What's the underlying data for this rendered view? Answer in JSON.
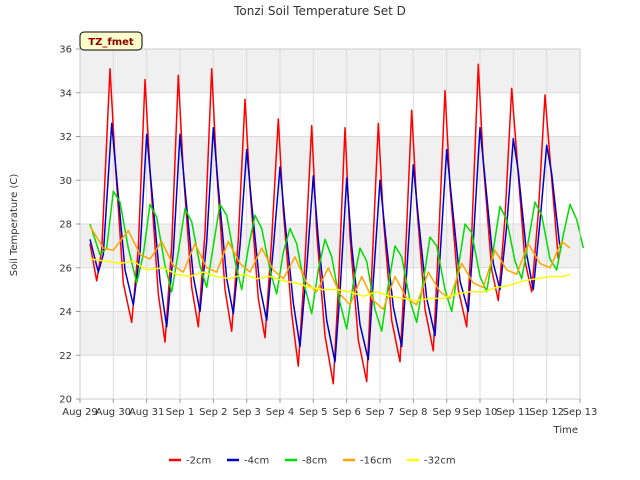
{
  "chart_data": {
    "type": "line",
    "title": "Tonzi Soil Temperature Set D",
    "xlabel": "Time",
    "ylabel": "Soil Temperature (C)",
    "badge": "TZ_fmet",
    "ylim": [
      20,
      36
    ],
    "yticks": [
      20,
      22,
      24,
      26,
      28,
      30,
      32,
      34,
      36
    ],
    "xlim": [
      0,
      15
    ],
    "xticks": [
      {
        "x": 0,
        "label": "Aug 29"
      },
      {
        "x": 1,
        "label": "Aug 30"
      },
      {
        "x": 2,
        "label": "Aug 31"
      },
      {
        "x": 3,
        "label": "Sep 1"
      },
      {
        "x": 4,
        "label": "Sep 2"
      },
      {
        "x": 5,
        "label": "Sep 3"
      },
      {
        "x": 6,
        "label": "Sep 4"
      },
      {
        "x": 7,
        "label": "Sep 5"
      },
      {
        "x": 8,
        "label": "Sep 6"
      },
      {
        "x": 9,
        "label": "Sep 7"
      },
      {
        "x": 10,
        "label": "Sep 8"
      },
      {
        "x": 11,
        "label": "Sep 9"
      },
      {
        "x": 12,
        "label": "Sep 10"
      },
      {
        "x": 13,
        "label": "Sep 11"
      },
      {
        "x": 14,
        "label": "Sep 12"
      },
      {
        "x": 15,
        "label": "Sep 13"
      }
    ],
    "grid": true,
    "legend_position": "bottom",
    "series": [
      {
        "name": "-2cm",
        "color": "#ff0000",
        "points": [
          [
            0.3,
            27.1
          ],
          [
            0.5,
            25.4
          ],
          [
            0.65,
            26.8
          ],
          [
            0.9,
            35.1
          ],
          [
            1.05,
            31.0
          ],
          [
            1.3,
            25.3
          ],
          [
            1.55,
            23.5
          ],
          [
            1.75,
            26.9
          ],
          [
            1.95,
            34.6
          ],
          [
            2.1,
            30.4
          ],
          [
            2.35,
            24.8
          ],
          [
            2.55,
            22.6
          ],
          [
            2.75,
            27.0
          ],
          [
            2.95,
            34.8
          ],
          [
            3.1,
            30.4
          ],
          [
            3.35,
            25.1
          ],
          [
            3.55,
            23.3
          ],
          [
            3.75,
            27.6
          ],
          [
            3.95,
            35.1
          ],
          [
            4.1,
            30.4
          ],
          [
            4.35,
            25.0
          ],
          [
            4.55,
            23.1
          ],
          [
            4.75,
            27.3
          ],
          [
            4.95,
            33.7
          ],
          [
            5.1,
            29.6
          ],
          [
            5.35,
            24.6
          ],
          [
            5.55,
            22.8
          ],
          [
            5.75,
            27.3
          ],
          [
            5.95,
            32.8
          ],
          [
            6.1,
            28.6
          ],
          [
            6.35,
            23.9
          ],
          [
            6.55,
            21.5
          ],
          [
            6.75,
            26.3
          ],
          [
            6.95,
            32.5
          ],
          [
            7.1,
            27.6
          ],
          [
            7.35,
            22.9
          ],
          [
            7.6,
            20.7
          ],
          [
            7.75,
            25.0
          ],
          [
            7.95,
            32.4
          ],
          [
            8.1,
            27.4
          ],
          [
            8.35,
            22.7
          ],
          [
            8.6,
            20.8
          ],
          [
            8.75,
            25.7
          ],
          [
            8.95,
            32.6
          ],
          [
            9.1,
            28.3
          ],
          [
            9.35,
            23.6
          ],
          [
            9.6,
            21.7
          ],
          [
            9.75,
            26.1
          ],
          [
            9.95,
            33.2
          ],
          [
            10.1,
            28.9
          ],
          [
            10.35,
            24.1
          ],
          [
            10.6,
            22.2
          ],
          [
            10.75,
            26.9
          ],
          [
            10.95,
            34.1
          ],
          [
            11.1,
            29.7
          ],
          [
            11.35,
            25.0
          ],
          [
            11.6,
            23.3
          ],
          [
            11.75,
            27.5
          ],
          [
            11.95,
            35.3
          ],
          [
            12.1,
            30.8
          ],
          [
            12.35,
            25.9
          ],
          [
            12.55,
            24.5
          ],
          [
            12.75,
            28.3
          ],
          [
            12.95,
            34.2
          ],
          [
            13.1,
            31.2
          ],
          [
            13.35,
            26.3
          ],
          [
            13.55,
            24.9
          ],
          [
            13.75,
            28.5
          ],
          [
            13.95,
            33.9
          ],
          [
            14.1,
            31.0
          ],
          [
            14.35,
            26.4
          ]
        ]
      },
      {
        "name": "-4cm",
        "color": "#0000cc",
        "points": [
          [
            0.3,
            27.3
          ],
          [
            0.55,
            25.8
          ],
          [
            0.7,
            26.6
          ],
          [
            0.95,
            32.6
          ],
          [
            1.1,
            30.1
          ],
          [
            1.35,
            25.9
          ],
          [
            1.6,
            24.3
          ],
          [
            1.8,
            26.7
          ],
          [
            2.0,
            32.1
          ],
          [
            2.15,
            29.6
          ],
          [
            2.4,
            25.4
          ],
          [
            2.6,
            23.3
          ],
          [
            2.8,
            26.7
          ],
          [
            3.0,
            32.1
          ],
          [
            3.15,
            29.6
          ],
          [
            3.4,
            25.6
          ],
          [
            3.6,
            24.0
          ],
          [
            3.8,
            27.2
          ],
          [
            4.0,
            32.4
          ],
          [
            4.15,
            29.7
          ],
          [
            4.4,
            25.5
          ],
          [
            4.6,
            23.9
          ],
          [
            4.8,
            27.0
          ],
          [
            5.0,
            31.4
          ],
          [
            5.15,
            28.9
          ],
          [
            5.4,
            25.1
          ],
          [
            5.6,
            23.6
          ],
          [
            5.8,
            26.9
          ],
          [
            6.0,
            30.6
          ],
          [
            6.15,
            28.1
          ],
          [
            6.4,
            24.4
          ],
          [
            6.6,
            22.4
          ],
          [
            6.8,
            26.0
          ],
          [
            7.0,
            30.2
          ],
          [
            7.15,
            27.3
          ],
          [
            7.4,
            23.6
          ],
          [
            7.65,
            21.7
          ],
          [
            7.8,
            24.9
          ],
          [
            8.0,
            30.1
          ],
          [
            8.15,
            27.0
          ],
          [
            8.4,
            23.4
          ],
          [
            8.65,
            21.8
          ],
          [
            8.8,
            25.4
          ],
          [
            9.0,
            30.0
          ],
          [
            9.15,
            27.7
          ],
          [
            9.4,
            24.2
          ],
          [
            9.65,
            22.4
          ],
          [
            9.8,
            25.8
          ],
          [
            10.0,
            30.7
          ],
          [
            10.15,
            28.3
          ],
          [
            10.4,
            24.6
          ],
          [
            10.65,
            22.9
          ],
          [
            10.8,
            26.5
          ],
          [
            11.0,
            31.4
          ],
          [
            11.15,
            29.1
          ],
          [
            11.4,
            25.4
          ],
          [
            11.65,
            24.0
          ],
          [
            11.8,
            27.2
          ],
          [
            12.0,
            32.4
          ],
          [
            12.15,
            30.1
          ],
          [
            12.4,
            26.2
          ],
          [
            12.6,
            25.0
          ],
          [
            12.8,
            27.9
          ],
          [
            13.0,
            31.9
          ],
          [
            13.15,
            30.4
          ],
          [
            13.4,
            26.6
          ],
          [
            13.6,
            25.0
          ],
          [
            13.8,
            28.1
          ],
          [
            14.0,
            31.6
          ],
          [
            14.15,
            30.3
          ],
          [
            14.4,
            26.9
          ]
        ]
      },
      {
        "name": "-8cm",
        "color": "#00dd00",
        "points": [
          [
            0.3,
            28.0
          ],
          [
            0.6,
            26.6
          ],
          [
            0.8,
            26.9
          ],
          [
            1.0,
            29.5
          ],
          [
            1.2,
            29.0
          ],
          [
            1.45,
            26.9
          ],
          [
            1.7,
            25.3
          ],
          [
            1.9,
            26.6
          ],
          [
            2.1,
            28.9
          ],
          [
            2.3,
            28.3
          ],
          [
            2.55,
            26.1
          ],
          [
            2.75,
            24.9
          ],
          [
            2.95,
            26.7
          ],
          [
            3.15,
            28.7
          ],
          [
            3.35,
            28.1
          ],
          [
            3.6,
            26.1
          ],
          [
            3.8,
            25.1
          ],
          [
            4.0,
            27.0
          ],
          [
            4.2,
            28.9
          ],
          [
            4.4,
            28.4
          ],
          [
            4.65,
            26.3
          ],
          [
            4.85,
            25.0
          ],
          [
            5.05,
            26.9
          ],
          [
            5.25,
            28.4
          ],
          [
            5.45,
            27.8
          ],
          [
            5.7,
            25.9
          ],
          [
            5.9,
            24.8
          ],
          [
            6.1,
            26.7
          ],
          [
            6.3,
            27.8
          ],
          [
            6.5,
            27.1
          ],
          [
            6.75,
            25.1
          ],
          [
            6.95,
            23.9
          ],
          [
            7.15,
            25.9
          ],
          [
            7.35,
            27.3
          ],
          [
            7.55,
            26.5
          ],
          [
            7.8,
            24.4
          ],
          [
            8.0,
            23.2
          ],
          [
            8.2,
            25.3
          ],
          [
            8.4,
            26.9
          ],
          [
            8.6,
            26.3
          ],
          [
            8.85,
            24.1
          ],
          [
            9.05,
            23.1
          ],
          [
            9.25,
            25.2
          ],
          [
            9.45,
            27.0
          ],
          [
            9.65,
            26.5
          ],
          [
            9.9,
            24.5
          ],
          [
            10.1,
            23.5
          ],
          [
            10.3,
            25.4
          ],
          [
            10.5,
            27.4
          ],
          [
            10.7,
            27.0
          ],
          [
            10.95,
            25.0
          ],
          [
            11.15,
            24.0
          ],
          [
            11.35,
            26.0
          ],
          [
            11.55,
            28.0
          ],
          [
            11.75,
            27.6
          ],
          [
            12.0,
            25.6
          ],
          [
            12.2,
            24.9
          ],
          [
            12.4,
            26.8
          ],
          [
            12.6,
            28.8
          ],
          [
            12.8,
            28.2
          ],
          [
            13.05,
            26.3
          ],
          [
            13.25,
            25.5
          ],
          [
            13.45,
            27.2
          ],
          [
            13.65,
            29.0
          ],
          [
            13.85,
            28.4
          ],
          [
            14.1,
            26.4
          ],
          [
            14.3,
            25.9
          ],
          [
            14.5,
            27.5
          ],
          [
            14.7,
            28.9
          ],
          [
            14.9,
            28.2
          ],
          [
            15.1,
            26.9
          ]
        ]
      },
      {
        "name": "-16cm",
        "color": "#ffa500",
        "points": [
          [
            0.3,
            27.9
          ],
          [
            0.7,
            26.9
          ],
          [
            1.0,
            26.8
          ],
          [
            1.45,
            27.7
          ],
          [
            1.8,
            26.6
          ],
          [
            2.1,
            26.4
          ],
          [
            2.45,
            27.2
          ],
          [
            2.8,
            26.1
          ],
          [
            3.1,
            25.8
          ],
          [
            3.45,
            27.1
          ],
          [
            3.8,
            26.0
          ],
          [
            4.1,
            25.8
          ],
          [
            4.45,
            27.2
          ],
          [
            4.8,
            26.2
          ],
          [
            5.1,
            25.8
          ],
          [
            5.45,
            26.9
          ],
          [
            5.8,
            25.9
          ],
          [
            6.1,
            25.5
          ],
          [
            6.45,
            26.5
          ],
          [
            6.8,
            25.3
          ],
          [
            7.1,
            24.9
          ],
          [
            7.45,
            26.0
          ],
          [
            7.8,
            24.8
          ],
          [
            8.1,
            24.3
          ],
          [
            8.45,
            25.6
          ],
          [
            8.8,
            24.5
          ],
          [
            9.1,
            24.1
          ],
          [
            9.45,
            25.6
          ],
          [
            9.8,
            24.6
          ],
          [
            10.1,
            24.3
          ],
          [
            10.45,
            25.8
          ],
          [
            10.8,
            24.9
          ],
          [
            11.1,
            24.6
          ],
          [
            11.45,
            26.2
          ],
          [
            11.8,
            25.3
          ],
          [
            12.1,
            25.1
          ],
          [
            12.45,
            26.8
          ],
          [
            12.8,
            25.9
          ],
          [
            13.1,
            25.7
          ],
          [
            13.45,
            27.1
          ],
          [
            13.8,
            26.2
          ],
          [
            14.1,
            26.0
          ],
          [
            14.45,
            27.2
          ],
          [
            14.7,
            26.9
          ]
        ]
      },
      {
        "name": "-32cm",
        "color": "#ffff00",
        "points": [
          [
            0.3,
            26.4
          ],
          [
            0.8,
            26.3
          ],
          [
            1.2,
            26.2
          ],
          [
            1.6,
            26.3
          ],
          [
            2.0,
            25.9
          ],
          [
            2.5,
            26.0
          ],
          [
            2.9,
            25.7
          ],
          [
            3.3,
            25.6
          ],
          [
            3.7,
            25.8
          ],
          [
            4.1,
            25.6
          ],
          [
            4.5,
            25.5
          ],
          [
            4.9,
            25.7
          ],
          [
            5.3,
            25.5
          ],
          [
            5.7,
            25.6
          ],
          [
            6.1,
            25.4
          ],
          [
            6.5,
            25.3
          ],
          [
            6.9,
            25.1
          ],
          [
            7.3,
            25.0
          ],
          [
            7.7,
            25.0
          ],
          [
            8.1,
            24.9
          ],
          [
            8.5,
            24.7
          ],
          [
            8.9,
            24.9
          ],
          [
            9.3,
            24.7
          ],
          [
            9.7,
            24.6
          ],
          [
            10.1,
            24.5
          ],
          [
            10.5,
            24.6
          ],
          [
            10.9,
            24.6
          ],
          [
            11.3,
            24.8
          ],
          [
            11.7,
            24.9
          ],
          [
            12.1,
            24.9
          ],
          [
            12.5,
            25.1
          ],
          [
            12.9,
            25.2
          ],
          [
            13.3,
            25.4
          ],
          [
            13.7,
            25.5
          ],
          [
            14.1,
            25.6
          ],
          [
            14.5,
            25.6
          ],
          [
            14.7,
            25.7
          ]
        ]
      }
    ]
  }
}
